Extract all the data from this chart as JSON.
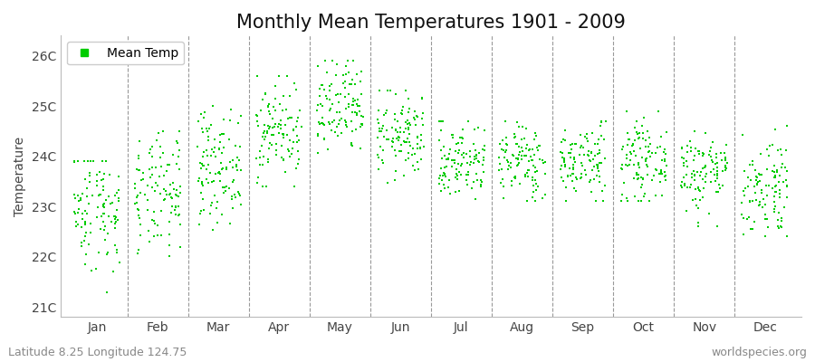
{
  "title": "Monthly Mean Temperatures 1901 - 2009",
  "ylabel": "Temperature",
  "ytick_labels": [
    "21C",
    "22C",
    "23C",
    "24C",
    "25C",
    "26C"
  ],
  "ytick_values": [
    21,
    22,
    23,
    24,
    25,
    26
  ],
  "ylim": [
    20.8,
    26.4
  ],
  "months": [
    "Jan",
    "Feb",
    "Mar",
    "Apr",
    "May",
    "Jun",
    "Jul",
    "Aug",
    "Sep",
    "Oct",
    "Nov",
    "Dec"
  ],
  "n_years": 109,
  "dot_color": "#00CC00",
  "dot_size": 3,
  "bg_color": "#ffffff",
  "legend_label": "Mean Temp",
  "bottom_left": "Latitude 8.25 Longitude 124.75",
  "bottom_right": "worldspecies.org",
  "monthly_means": [
    23.0,
    23.2,
    23.8,
    24.5,
    24.9,
    24.4,
    23.9,
    23.9,
    23.9,
    23.9,
    23.7,
    23.4
  ],
  "monthly_stds": [
    0.65,
    0.6,
    0.55,
    0.5,
    0.5,
    0.42,
    0.38,
    0.38,
    0.38,
    0.38,
    0.42,
    0.52
  ],
  "monthly_mins": [
    20.8,
    21.4,
    22.5,
    23.4,
    23.7,
    23.4,
    23.1,
    23.1,
    23.1,
    23.1,
    22.6,
    22.4
  ],
  "monthly_maxs": [
    23.9,
    24.5,
    25.0,
    25.6,
    25.9,
    25.3,
    24.7,
    24.7,
    24.7,
    24.9,
    24.5,
    24.6
  ],
  "grid_color": "#999999",
  "title_fontsize": 15,
  "axis_fontsize": 10,
  "tick_fontsize": 10,
  "footer_fontsize": 9
}
